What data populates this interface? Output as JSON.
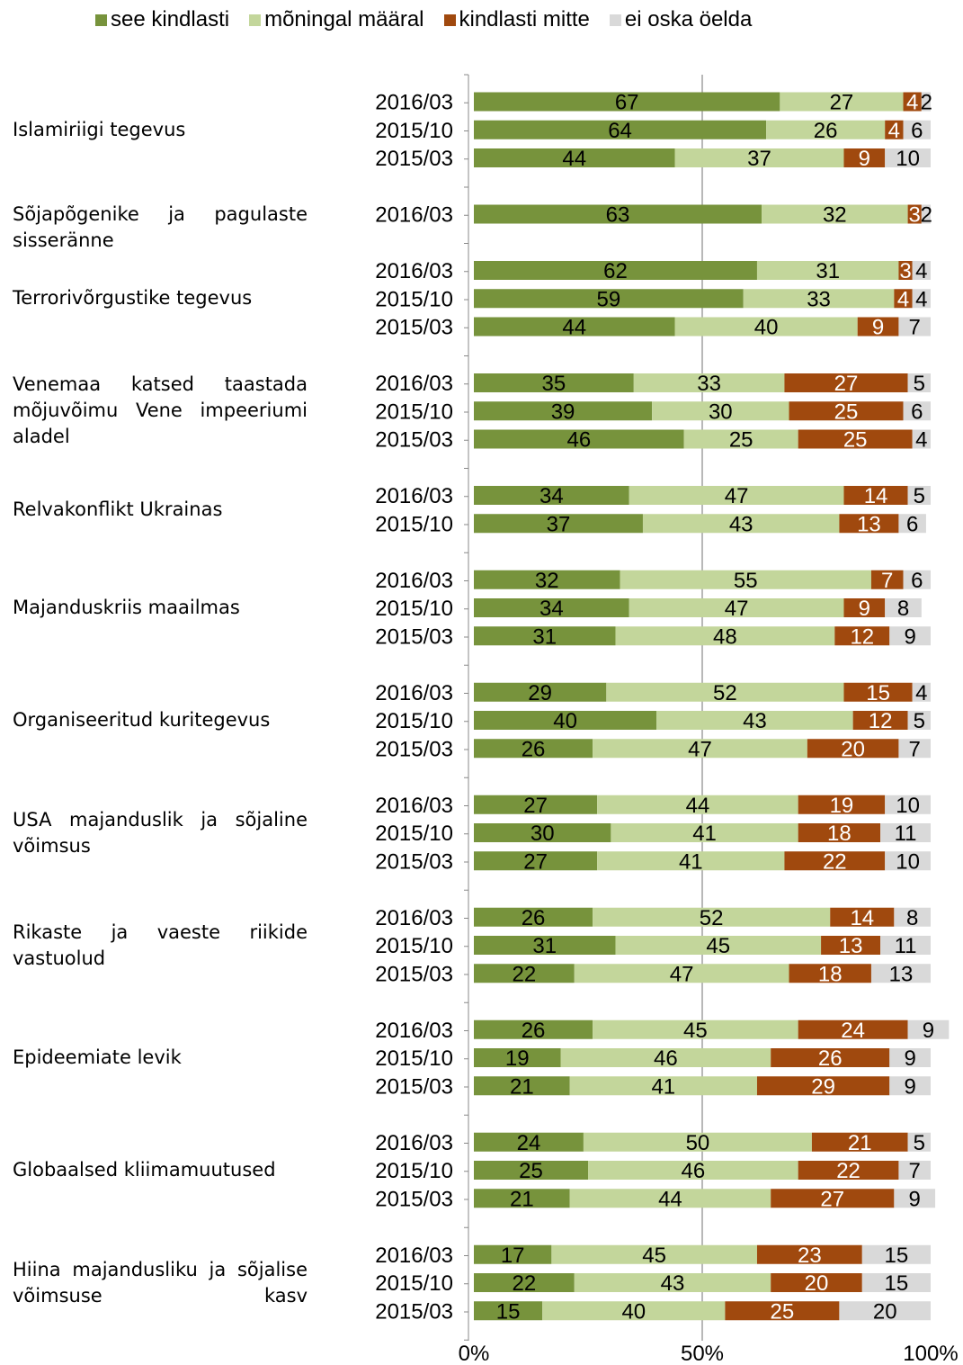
{
  "chart_data": {
    "type": "bar",
    "stacked": true,
    "orientation": "horizontal",
    "percent_scale": true,
    "xlim": [
      0,
      100
    ],
    "x_ticks": [
      "0%",
      "50%",
      "100%"
    ],
    "gridline_at": 50,
    "legend": {
      "position": "top"
    },
    "series": [
      {
        "name": "see kindlasti",
        "color": "#77933C"
      },
      {
        "name": "mõningal määral",
        "color": "#C3D69B"
      },
      {
        "name": "kindlasti mitte",
        "color": "#A0490E"
      },
      {
        "name": "ei oska öelda",
        "color": "#D9D9D9"
      }
    ],
    "groups": [
      {
        "topic": "Islamiriigi tegevus",
        "rows": [
          {
            "period": "2016/03",
            "values": [
              67,
              27,
              4,
              2
            ]
          },
          {
            "period": "2015/10",
            "values": [
              64,
              26,
              4,
              6
            ]
          },
          {
            "period": "2015/03",
            "values": [
              44,
              37,
              9,
              10
            ]
          }
        ]
      },
      {
        "topic": "Sõjapõgenike ja pagulaste sisseränne",
        "rows": [
          {
            "period": "2016/03",
            "values": [
              63,
              32,
              3,
              2
            ]
          }
        ]
      },
      {
        "topic": "Terrorivõrgustike tegevus",
        "rows": [
          {
            "period": "2016/03",
            "values": [
              62,
              31,
              3,
              4
            ]
          },
          {
            "period": "2015/10",
            "values": [
              59,
              33,
              4,
              4
            ]
          },
          {
            "period": "2015/03",
            "values": [
              44,
              40,
              9,
              7
            ]
          }
        ]
      },
      {
        "topic": "Venemaa katsed taastada mõjuvõimu Vene impeeriumi aladel",
        "rows": [
          {
            "period": "2016/03",
            "values": [
              35,
              33,
              27,
              5
            ]
          },
          {
            "period": "2015/10",
            "values": [
              39,
              30,
              25,
              6
            ]
          },
          {
            "period": "2015/03",
            "values": [
              46,
              25,
              25,
              4
            ]
          }
        ]
      },
      {
        "topic": "Relvakonflikt Ukrainas",
        "rows": [
          {
            "period": "2016/03",
            "values": [
              34,
              47,
              14,
              5
            ]
          },
          {
            "period": "2015/10",
            "values": [
              37,
              43,
              13,
              6
            ]
          }
        ]
      },
      {
        "topic": "Majanduskriis maailmas",
        "rows": [
          {
            "period": "2016/03",
            "values": [
              32,
              55,
              7,
              6
            ]
          },
          {
            "period": "2015/10",
            "values": [
              34,
              47,
              9,
              8
            ]
          },
          {
            "period": "2015/03",
            "values": [
              31,
              48,
              12,
              9
            ]
          }
        ]
      },
      {
        "topic": "Organiseeritud kuritegevus",
        "rows": [
          {
            "period": "2016/03",
            "values": [
              29,
              52,
              15,
              4
            ]
          },
          {
            "period": "2015/10",
            "values": [
              40,
              43,
              12,
              5
            ]
          },
          {
            "period": "2015/03",
            "values": [
              26,
              47,
              20,
              7
            ]
          }
        ]
      },
      {
        "topic": "USA majanduslik ja sõjaline võimsus",
        "rows": [
          {
            "period": "2016/03",
            "values": [
              27,
              44,
              19,
              10
            ]
          },
          {
            "period": "2015/10",
            "values": [
              30,
              41,
              18,
              11
            ]
          },
          {
            "period": "2015/03",
            "values": [
              27,
              41,
              22,
              10
            ]
          }
        ]
      },
      {
        "topic": "Rikaste ja vaeste riikide vastuolud",
        "rows": [
          {
            "period": "2016/03",
            "values": [
              26,
              52,
              14,
              8
            ]
          },
          {
            "period": "2015/10",
            "values": [
              31,
              45,
              13,
              11
            ]
          },
          {
            "period": "2015/03",
            "values": [
              22,
              47,
              18,
              13
            ]
          }
        ]
      },
      {
        "topic": "Epideemiate levik",
        "rows": [
          {
            "period": "2016/03",
            "values": [
              26,
              45,
              24,
              9
            ]
          },
          {
            "period": "2015/10",
            "values": [
              19,
              46,
              26,
              9
            ]
          },
          {
            "period": "2015/03",
            "values": [
              21,
              41,
              29,
              9
            ]
          }
        ]
      },
      {
        "topic": "Globaalsed kliimamuutused",
        "rows": [
          {
            "period": "2016/03",
            "values": [
              24,
              50,
              21,
              5
            ]
          },
          {
            "period": "2015/10",
            "values": [
              25,
              46,
              22,
              7
            ]
          },
          {
            "period": "2015/03",
            "values": [
              21,
              44,
              27,
              9
            ]
          }
        ]
      },
      {
        "topic": "Hiina majandusliku ja sõjalise võimsuse kasv",
        "rows": [
          {
            "period": "2016/03",
            "values": [
              17,
              45,
              23,
              15
            ]
          },
          {
            "period": "2015/10",
            "values": [
              22,
              43,
              20,
              15
            ]
          },
          {
            "period": "2015/03",
            "values": [
              15,
              40,
              25,
              20
            ]
          }
        ]
      }
    ]
  }
}
